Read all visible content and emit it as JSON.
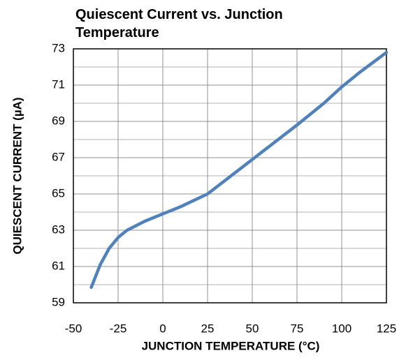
{
  "chart_data": {
    "type": "line",
    "title": "Quiescent Current vs. Junction Temperature",
    "x_label": "JUNCTION TEMPERATURE (°C)",
    "y_label": "QUIESCENT CURRENT (µA)",
    "x": [
      -40,
      -35,
      -30,
      -25,
      -20,
      -10,
      0,
      10,
      25,
      50,
      75,
      90,
      100,
      110,
      125
    ],
    "series": [
      {
        "name": "Quiescent Current",
        "color": "#4f81bd",
        "values": [
          59.85,
          61.1,
          62.0,
          62.6,
          63.0,
          63.5,
          63.9,
          64.3,
          65.0,
          66.9,
          68.8,
          70.0,
          70.9,
          71.7,
          72.8
        ]
      }
    ],
    "xlim": [
      -50,
      125
    ],
    "xticks": [
      -50,
      -25,
      0,
      25,
      50,
      75,
      100,
      125
    ],
    "ylim": [
      59,
      73
    ],
    "yticks": [
      59,
      61,
      63,
      65,
      67,
      69,
      71,
      73
    ],
    "y_minor_ticks": [
      60,
      62,
      64,
      66,
      68,
      70,
      72
    ],
    "grid": true
  }
}
